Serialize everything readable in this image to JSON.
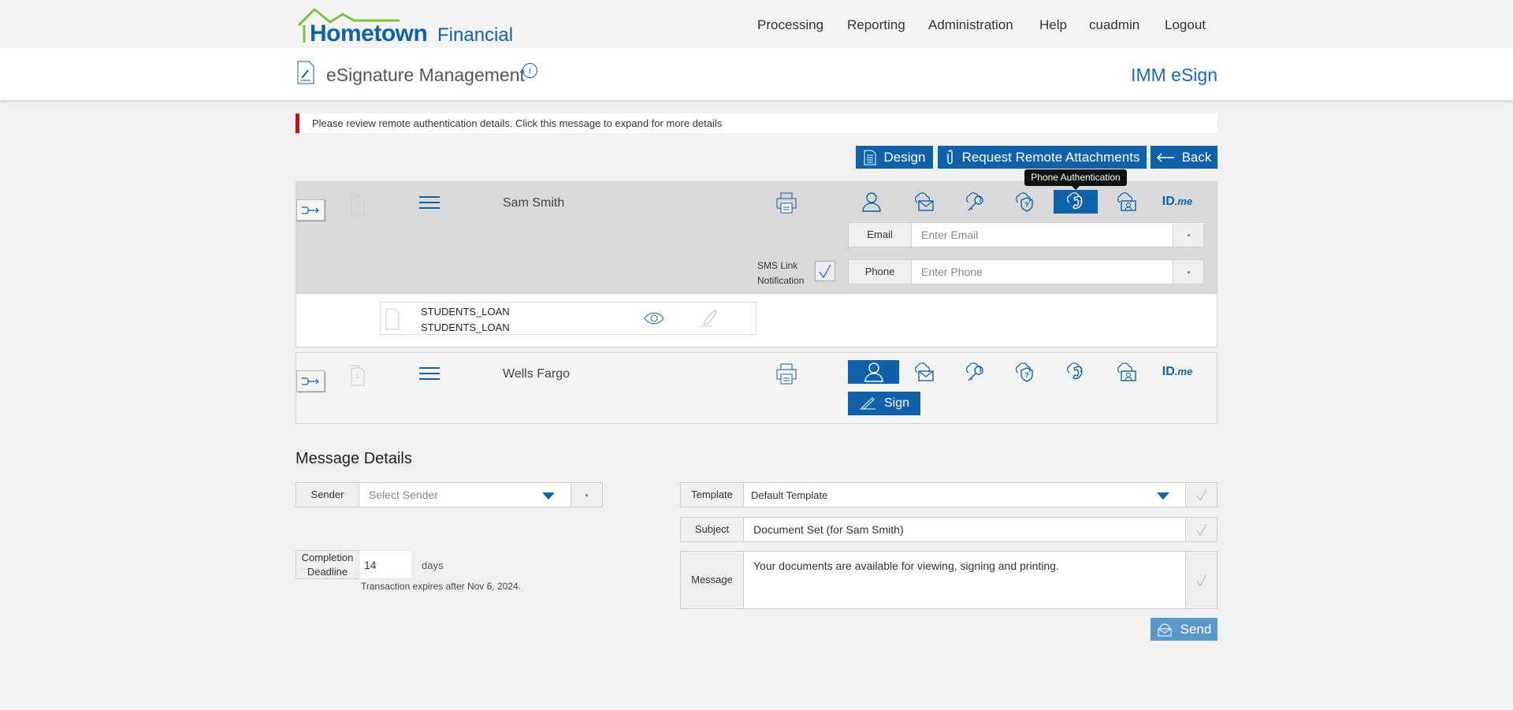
{
  "header": {
    "logo_text_1": "Hometown",
    "logo_text_2": "Financial",
    "nav": [
      "Processing",
      "Reporting",
      "Administration",
      "Help",
      "cuadmin",
      "Logout"
    ]
  },
  "page": {
    "title": "eSignature Management",
    "product": "IMM eSign"
  },
  "alert": {
    "text": "Please review remote authentication details. Click this message to expand for more details",
    "color": "#e00000"
  },
  "toolbar": {
    "design": "Design",
    "request": "Request Remote Attachments",
    "back": "Back"
  },
  "tooltip": "Phone Authentication",
  "signers": [
    {
      "name": "Sam Smith",
      "active_auth": "phone",
      "email_label": "Email",
      "email_placeholder": "Enter Email",
      "phone_label": "Phone",
      "phone_placeholder": "Enter Phone",
      "sms_label_1": "SMS Link",
      "sms_label_2": "Notification",
      "sms_checked": true,
      "documents": [
        {
          "line1": "STUDENTS_LOAN",
          "line2": "STUDENTS_LOAN"
        }
      ]
    },
    {
      "name": "Wells Fargo",
      "active_auth": "person",
      "sign_label": "Sign"
    }
  ],
  "auth_icons": [
    "person-icon",
    "email-cloud-icon",
    "key-cloud-icon",
    "question-shield-icon",
    "phone-icon",
    "id-card-cloud-icon",
    "idme-icon"
  ],
  "idme": {
    "id": "ID",
    "me": ".me"
  },
  "message_details": {
    "heading": "Message Details",
    "sender_label": "Sender",
    "sender_placeholder": "Select Sender",
    "deadline_label_1": "Completion",
    "deadline_label_2": "Deadline",
    "deadline_value": "14",
    "days": "days",
    "expires": "Transaction expires after Nov 6, 2024.",
    "template_label": "Template",
    "template_value": "Default Template",
    "subject_label": "Subject",
    "subject_value": "Document Set (for Sam Smith)",
    "message_label": "Message",
    "message_value": "Your documents are available for viewing, signing and printing.",
    "send": "Send"
  },
  "colors": {
    "brand_blue": "#0f61a9",
    "logo_green": "#7cc242",
    "send_blue": "#5b97c7"
  }
}
